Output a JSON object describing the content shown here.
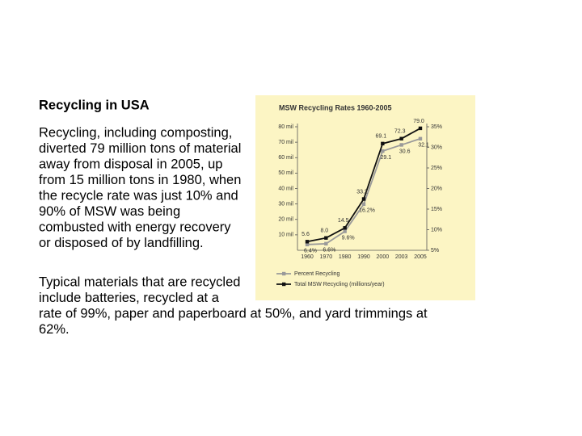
{
  "title": "Recycling in USA",
  "paragraphs": [
    [
      "Recycling, including composting,",
      "diverted 79 million tons of material",
      "away from disposal in 2005, up",
      "from 15 million tons in 1980, when",
      "the recycle rate was just 10% and",
      "90% of MSW was being",
      "combusted with energy recovery",
      "or disposed of by landfilling."
    ],
    [
      "Typical materials that are recycled",
      "include batteries, recycled at a",
      "rate of 99%, paper and paperboard at 50%, and yard trimmings at",
      "62%."
    ]
  ],
  "chart_data": {
    "type": "line",
    "title": "MSW Recycling Rates 1960-2005",
    "categories": [
      "1960",
      "1970",
      "1980",
      "1990",
      "2000",
      "2003",
      "2005"
    ],
    "series": [
      {
        "name": "Percent Recycling",
        "color": "#9a9a9a",
        "axis": "y2",
        "values": [
          6.4,
          6.6,
          9.6,
          16.2,
          29.1,
          30.6,
          32.1
        ],
        "value_labels": [
          "6.4%",
          "6.6%",
          "9.6%",
          "16.2%",
          "29.1",
          "30.6",
          "32.1"
        ]
      },
      {
        "name": "Total MSW Recycling (millions/year)",
        "color": "#111111",
        "values": [
          5.6,
          8.0,
          14.5,
          33.2,
          69.1,
          72.3,
          79.0
        ],
        "value_labels": [
          "5.6",
          "8.0",
          "14.5",
          "33.2",
          "69.1",
          "72.3",
          "79.0"
        ]
      }
    ],
    "ylim": [
      0,
      80
    ],
    "yticks": [
      {
        "value": 10,
        "label": "10 mil"
      },
      {
        "value": 20,
        "label": "20 mil"
      },
      {
        "value": 30,
        "label": "30 mil"
      },
      {
        "value": 40,
        "label": "40 mil"
      },
      {
        "value": 50,
        "label": "50 mil"
      },
      {
        "value": 60,
        "label": "60 mil"
      },
      {
        "value": 70,
        "label": "70 mil"
      },
      {
        "value": 80,
        "label": "80 mil"
      }
    ],
    "y2lim": [
      5,
      35
    ],
    "y2ticks": [
      {
        "value": 5,
        "label": "5%"
      },
      {
        "value": 10,
        "label": "10%"
      },
      {
        "value": 15,
        "label": "15%"
      },
      {
        "value": 20,
        "label": "20%"
      },
      {
        "value": 25,
        "label": "25%"
      },
      {
        "value": 30,
        "label": "30%"
      },
      {
        "value": 35,
        "label": "35%"
      }
    ],
    "background": "#fcf5c4"
  }
}
